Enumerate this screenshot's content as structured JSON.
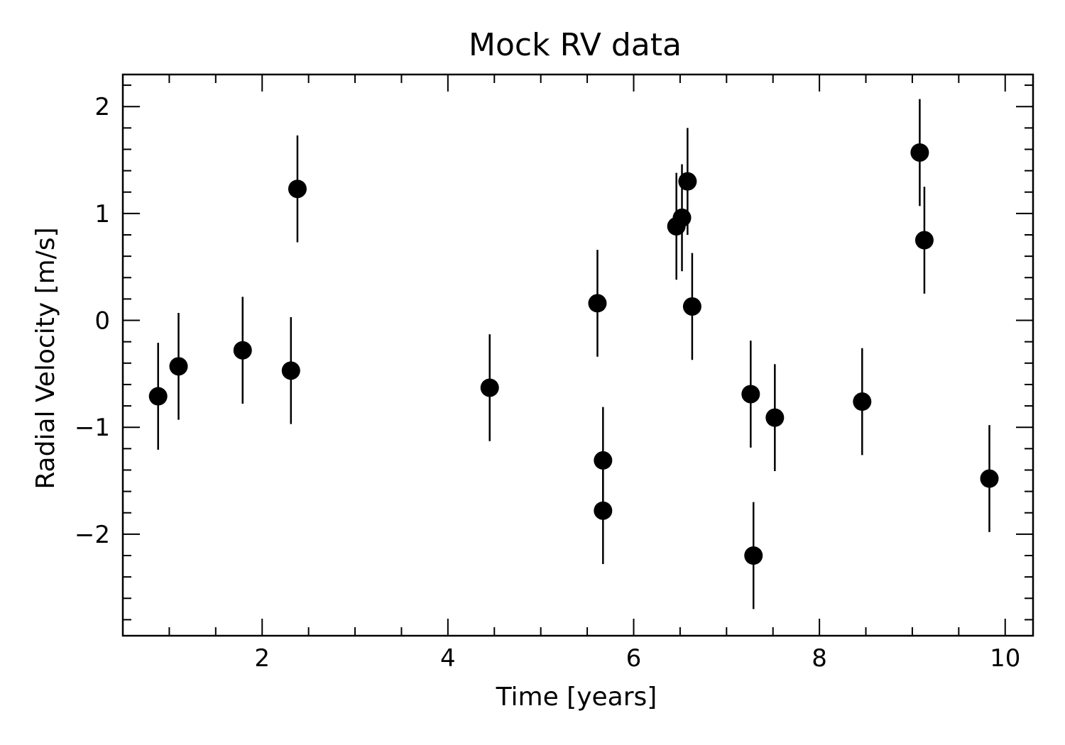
{
  "chart_data": {
    "type": "scatter",
    "title": "Mock RV data",
    "xlabel": "Time [years]",
    "ylabel": "Radial Velocity [m/s]",
    "xlim": [
      0.5,
      10.3
    ],
    "ylim": [
      -2.95,
      2.3
    ],
    "grid": false,
    "legend": "none",
    "marker_color": "#000000",
    "error_bar_color": "#000000",
    "x_ticks": [
      2,
      4,
      6,
      8,
      10
    ],
    "x_tick_labels": [
      "2",
      "4",
      "6",
      "8",
      "10"
    ],
    "x_minor_step": 0.5,
    "y_ticks": [
      -2,
      -1,
      0,
      1,
      2
    ],
    "y_tick_labels": [
      "−2",
      "−1",
      "0",
      "1",
      "2"
    ],
    "y_minor_step": 0.2,
    "points": [
      {
        "x": 0.88,
        "y": -0.71,
        "yerr": 0.5
      },
      {
        "x": 1.1,
        "y": -0.43,
        "yerr": 0.5
      },
      {
        "x": 1.79,
        "y": -0.28,
        "yerr": 0.5
      },
      {
        "x": 2.31,
        "y": -0.47,
        "yerr": 0.5
      },
      {
        "x": 2.38,
        "y": 1.23,
        "yerr": 0.5
      },
      {
        "x": 4.45,
        "y": -0.63,
        "yerr": 0.5
      },
      {
        "x": 5.61,
        "y": 0.16,
        "yerr": 0.5
      },
      {
        "x": 5.67,
        "y": -1.31,
        "yerr": 0.5
      },
      {
        "x": 5.67,
        "y": -1.78,
        "yerr": 0.5
      },
      {
        "x": 6.46,
        "y": 0.88,
        "yerr": 0.5
      },
      {
        "x": 6.52,
        "y": 0.96,
        "yerr": 0.5
      },
      {
        "x": 6.58,
        "y": 1.3,
        "yerr": 0.5
      },
      {
        "x": 6.63,
        "y": 0.13,
        "yerr": 0.5
      },
      {
        "x": 7.26,
        "y": -0.69,
        "yerr": 0.5
      },
      {
        "x": 7.29,
        "y": -2.2,
        "yerr": 0.5
      },
      {
        "x": 7.52,
        "y": -0.91,
        "yerr": 0.5
      },
      {
        "x": 8.46,
        "y": -0.76,
        "yerr": 0.5
      },
      {
        "x": 9.08,
        "y": 1.57,
        "yerr": 0.5
      },
      {
        "x": 9.13,
        "y": 0.75,
        "yerr": 0.5
      },
      {
        "x": 9.83,
        "y": -1.48,
        "yerr": 0.5
      }
    ]
  }
}
